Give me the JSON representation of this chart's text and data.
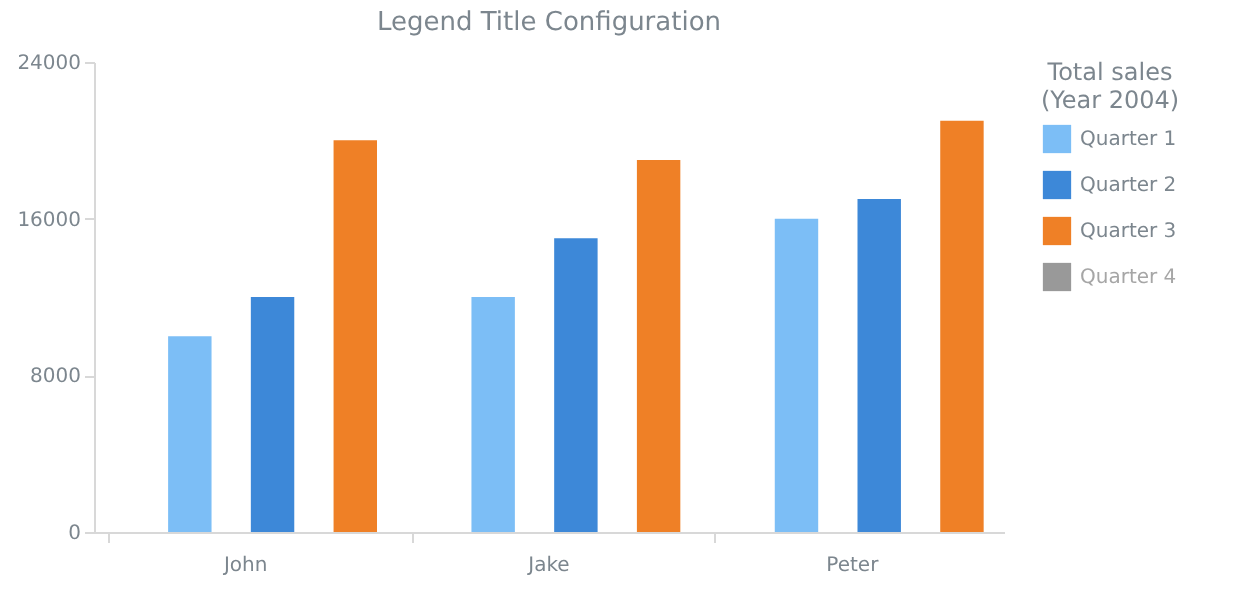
{
  "chart_data": {
    "type": "bar",
    "title": "Legend Title Configuration",
    "legend_title": "Total sales\n(Year 2004)",
    "categories": [
      "John",
      "Jake",
      "Peter"
    ],
    "series": [
      {
        "name": "Quarter 1",
        "color": "#7cbef6",
        "values": [
          10000,
          12000,
          16000
        ]
      },
      {
        "name": "Quarter 2",
        "color": "#3d88d8",
        "values": [
          12000,
          15000,
          17000
        ]
      },
      {
        "name": "Quarter 3",
        "color": "#ef8026",
        "values": [
          20000,
          19000,
          21000
        ]
      },
      {
        "name": "Quarter 4",
        "color": "#999999",
        "values": [
          null,
          null,
          null
        ]
      }
    ],
    "ylim": [
      0,
      24000
    ],
    "yticks": [
      0,
      8000,
      16000,
      24000
    ],
    "legend": "right"
  }
}
